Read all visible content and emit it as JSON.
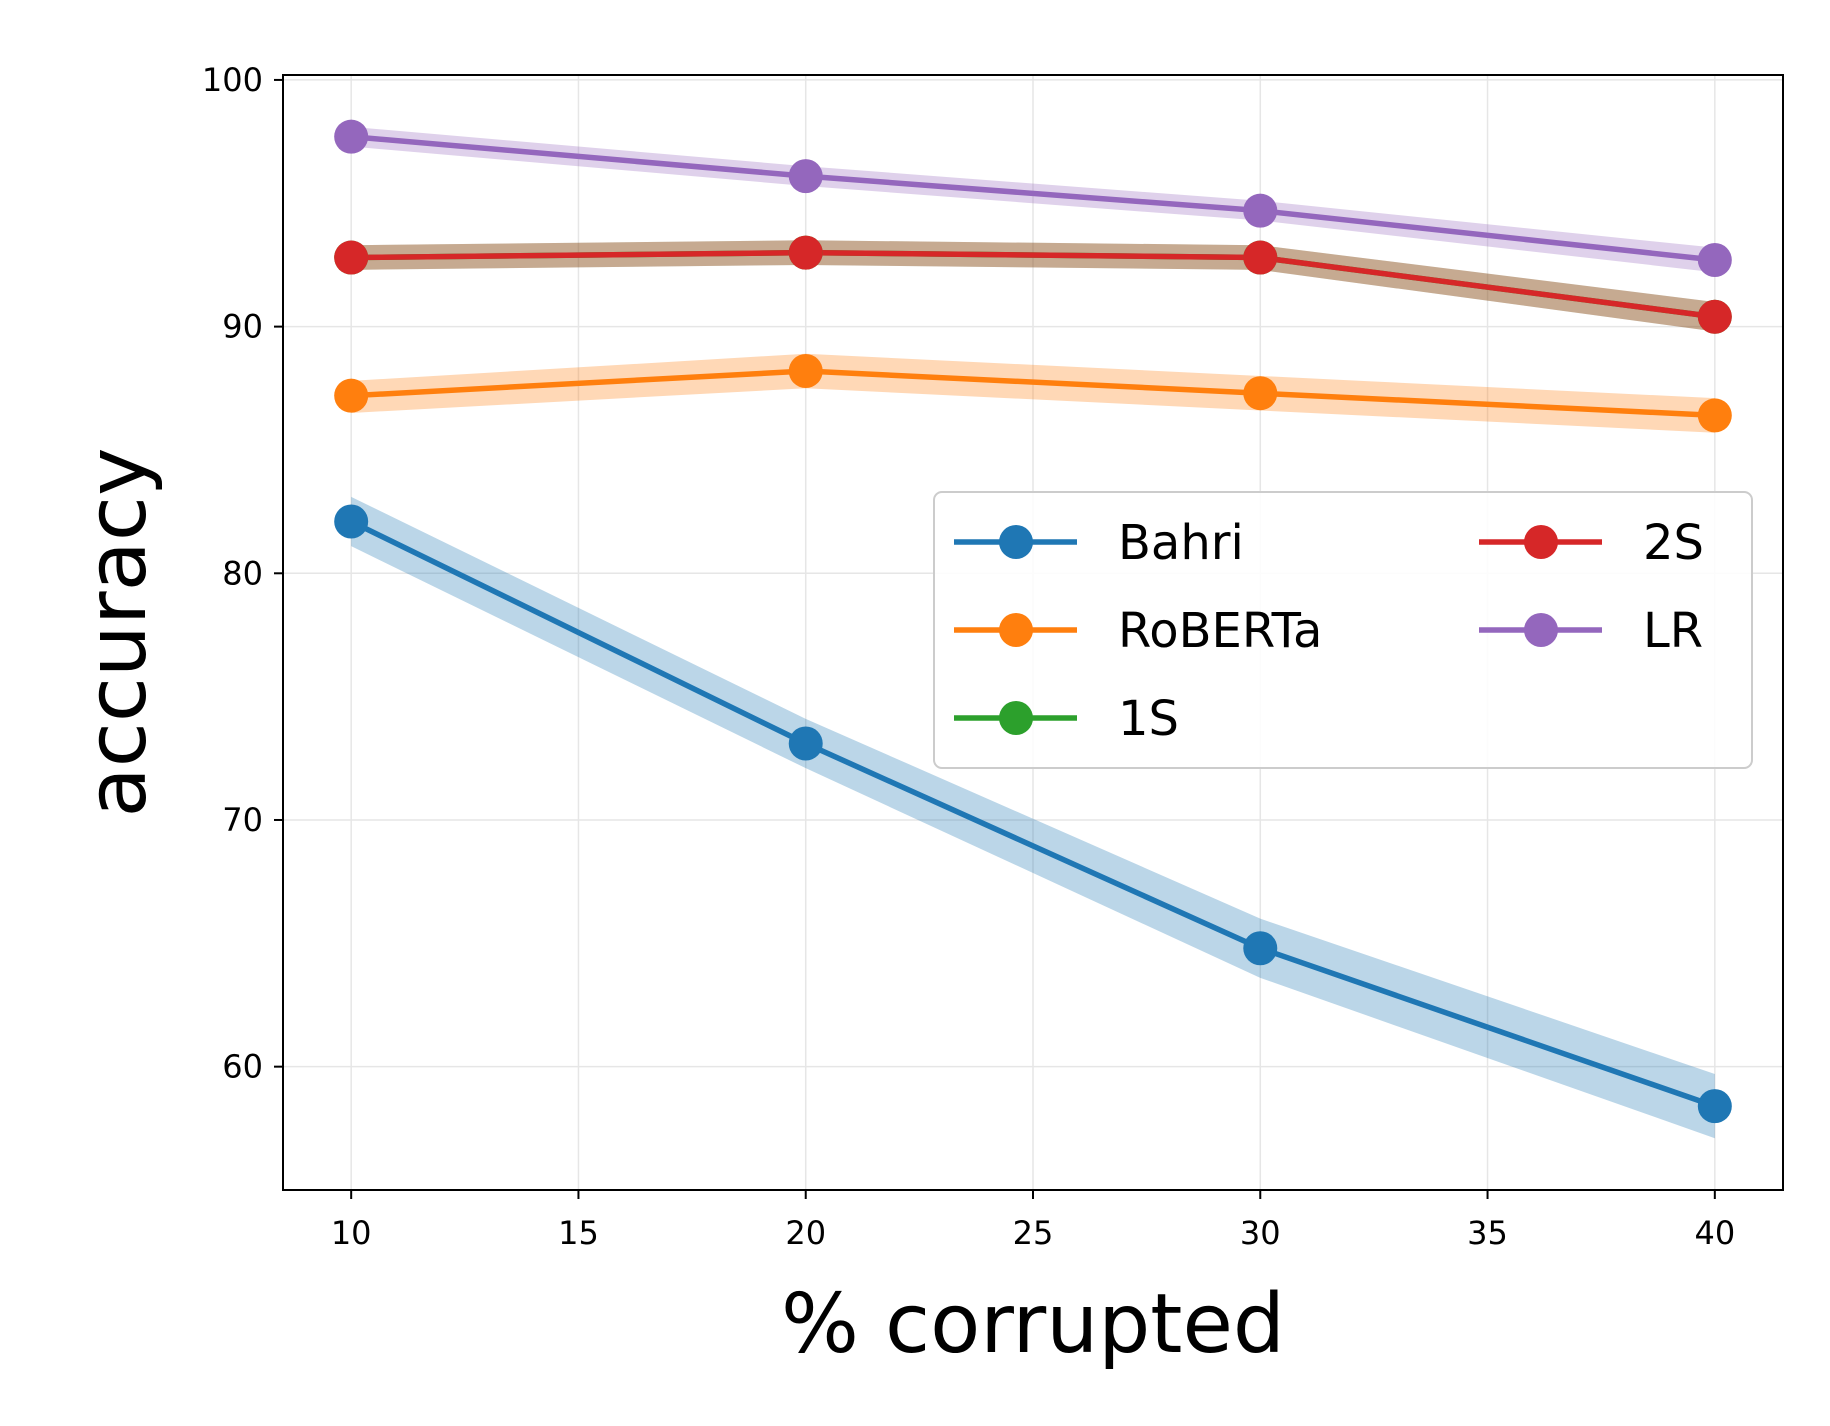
{
  "chart_data": {
    "type": "line",
    "xlabel": "% corrupted",
    "ylabel": "accuracy",
    "xlim": [
      8.5,
      41.5
    ],
    "ylim": [
      55,
      100.2
    ],
    "x_ticks": [
      10,
      15,
      20,
      25,
      30,
      35,
      40
    ],
    "y_ticks": [
      60,
      70,
      80,
      90,
      100
    ],
    "grid": true,
    "legend_position": "center-right",
    "legend_columns": 2,
    "x": [
      10,
      20,
      30,
      40
    ],
    "series": [
      {
        "name": "Bahri",
        "color": "#1f77b4",
        "values": [
          82.1,
          73.1,
          64.8,
          58.4
        ],
        "lower": [
          81.1,
          72.1,
          63.6,
          57.1
        ],
        "upper": [
          83.1,
          74.1,
          66.0,
          59.7
        ]
      },
      {
        "name": "RoBERTa",
        "color": "#ff7f0e",
        "values": [
          87.2,
          88.2,
          87.3,
          86.4
        ],
        "lower": [
          86.5,
          87.5,
          86.6,
          85.7
        ],
        "upper": [
          87.8,
          88.9,
          88.0,
          87.1
        ]
      },
      {
        "name": "1S",
        "color": "#2ca02c",
        "values": [
          92.8,
          93.0,
          92.8,
          90.4
        ],
        "lower": [
          92.3,
          92.5,
          92.3,
          89.8
        ],
        "upper": [
          93.3,
          93.5,
          93.3,
          91.0
        ]
      },
      {
        "name": "2S",
        "color": "#d62728",
        "values": [
          92.8,
          93.0,
          92.8,
          90.4
        ],
        "lower": [
          92.3,
          92.5,
          92.3,
          89.8
        ],
        "upper": [
          93.3,
          93.5,
          93.3,
          91.0
        ]
      },
      {
        "name": "LR",
        "color": "#9467bd",
        "values": [
          97.7,
          96.1,
          94.7,
          92.7
        ],
        "lower": [
          97.3,
          95.7,
          94.3,
          92.2
        ],
        "upper": [
          98.1,
          96.5,
          95.1,
          93.2
        ]
      }
    ]
  }
}
